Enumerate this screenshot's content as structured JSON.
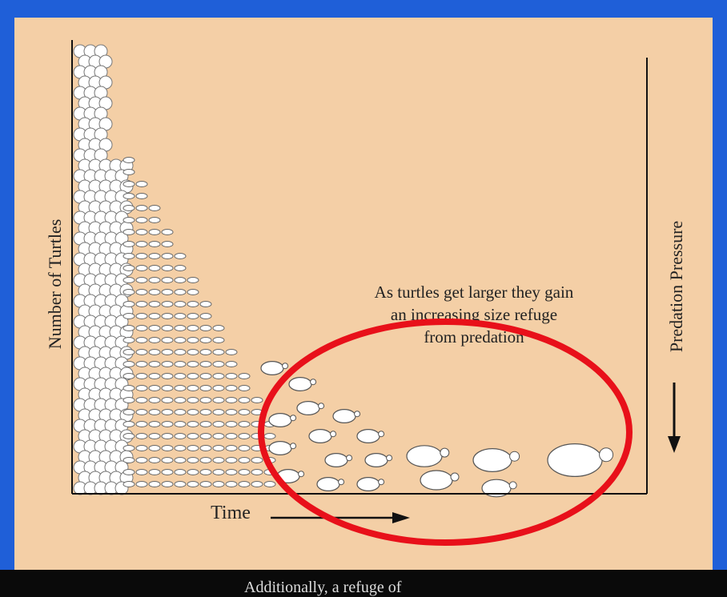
{
  "diagram": {
    "y_axis_label": "Number of Turtles",
    "x_axis_label": "Time",
    "right_axis_label": "Predation Pressure",
    "annotation": [
      "As turtles get larger they gain",
      "an increasing size refuge",
      "from predation"
    ],
    "caption": "Additionally, a refuge of"
  }
}
